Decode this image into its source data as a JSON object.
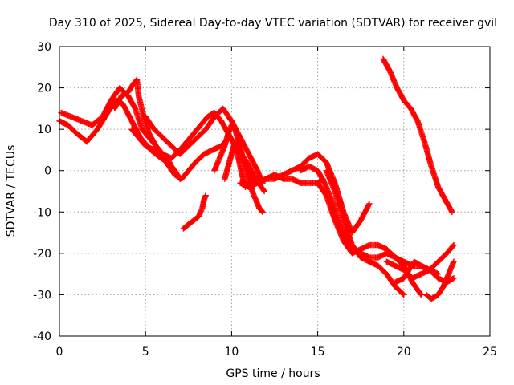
{
  "chart_data": {
    "type": "scatter",
    "title": "Day 310 of 2025, Sidereal Day-to-day VTEC variation (SDTVAR) for receiver gvil",
    "xlabel": "GPS time / hours",
    "ylabel": "SDTVAR / TECUs",
    "xlim": [
      0,
      25
    ],
    "ylim": [
      -40,
      30
    ],
    "xticks": [
      0,
      5,
      10,
      15,
      20,
      25
    ],
    "yticks": [
      -40,
      -30,
      -20,
      -10,
      0,
      10,
      20,
      30
    ],
    "xtick_labels": [
      "0",
      "5",
      "10",
      "15",
      "20",
      "25"
    ],
    "ytick_labels": [
      "-40",
      "-30",
      "-20",
      "-10",
      "0",
      "10",
      "20",
      "30"
    ],
    "grid": true,
    "marker": "plus",
    "color": "#ff0000",
    "series": [
      {
        "x": [
          0.0,
          0.5,
          1.0,
          1.6,
          2.2,
          2.8,
          3.3,
          3.7,
          4.2,
          4.7,
          5.3,
          5.9,
          6.4
        ],
        "y": [
          12,
          11,
          9,
          7,
          10,
          14,
          17,
          16,
          12,
          8,
          5,
          3,
          2
        ]
      },
      {
        "x": [
          0.1,
          0.7,
          1.3,
          1.9,
          2.5,
          3.0,
          3.5,
          4.0,
          4.4,
          4.8,
          5.4,
          6.0,
          6.7,
          7.0
        ],
        "y": [
          14,
          13,
          12,
          11,
          13,
          17,
          20,
          18,
          15,
          10,
          7,
          4,
          0,
          -2
        ]
      },
      {
        "x": [
          3.2,
          3.6,
          4.0,
          4.3,
          4.5,
          4.6,
          4.9,
          5.2,
          5.6,
          6.1,
          6.6,
          7.0
        ],
        "y": [
          15,
          18,
          19,
          21,
          22,
          18,
          13,
          9,
          6,
          3,
          0,
          -2
        ]
      },
      {
        "x": [
          4.2,
          4.6,
          5.0,
          5.5,
          6.0,
          6.5,
          7.0,
          7.4,
          7.8,
          8.2,
          8.6,
          9.0,
          9.4,
          9.8,
          10.2,
          10.6,
          11.0,
          11.3
        ],
        "y": [
          10,
          8,
          6,
          5,
          4,
          3,
          5,
          7,
          9,
          11,
          13,
          14,
          12,
          9,
          6,
          3,
          0,
          -3
        ]
      },
      {
        "x": [
          5.0,
          5.5,
          6.0,
          6.5,
          7.0,
          7.5,
          8.0,
          8.5,
          9.0,
          9.5,
          10.0,
          10.5,
          11.0,
          11.5,
          11.8
        ],
        "y": [
          13,
          10,
          8,
          6,
          4,
          6,
          8,
          10,
          13,
          15,
          12,
          8,
          4,
          0,
          -3
        ]
      },
      {
        "x": [
          5.8,
          6.2,
          6.7,
          7.1,
          7.5,
          7.9,
          8.4,
          8.9,
          9.4,
          9.9,
          10.4,
          10.9,
          11.4,
          11.9
        ],
        "y": [
          4,
          2,
          -1,
          -2,
          0,
          2,
          4,
          5,
          6,
          8,
          5,
          2,
          -2,
          -5
        ]
      },
      {
        "x": [
          7.2,
          7.5,
          7.8,
          8.1,
          8.3,
          8.4,
          8.5
        ],
        "y": [
          -14,
          -13,
          -12,
          -11,
          -9,
          -7,
          -6
        ]
      },
      {
        "x": [
          9.0,
          9.2,
          9.4,
          9.6,
          9.8,
          10.0,
          10.2,
          10.4,
          10.6,
          10.8,
          11.0,
          11.2,
          11.4,
          11.6,
          11.8
        ],
        "y": [
          0,
          2,
          4,
          6,
          9,
          11,
          10,
          7,
          4,
          1,
          -2,
          -5,
          -7,
          -9,
          -10
        ]
      },
      {
        "x": [
          9.6,
          9.8,
          10.0,
          10.2,
          10.4,
          10.6,
          10.8
        ],
        "y": [
          -2,
          1,
          4,
          7,
          3,
          -1,
          -4
        ]
      },
      {
        "x": [
          10.5,
          11.0,
          11.5,
          12.0,
          12.5,
          13.0,
          13.5,
          14.0,
          14.5,
          15.0,
          15.3
        ],
        "y": [
          -3,
          -4,
          -3,
          -2,
          -1,
          -2,
          -2,
          -3,
          -3,
          -3,
          -2
        ]
      },
      {
        "x": [
          11.5,
          12.0,
          12.5,
          13.0,
          13.5,
          14.0,
          14.5,
          15.0,
          15.5,
          16.0,
          16.5,
          17.0,
          17.5,
          18.0
        ],
        "y": [
          -3,
          -2,
          -2,
          -1,
          0,
          1,
          3,
          4,
          2,
          -3,
          -10,
          -15,
          -12,
          -8
        ]
      },
      {
        "x": [
          14.0,
          14.5,
          15.0,
          15.4,
          15.8,
          16.2,
          16.6,
          17.0,
          17.5,
          18.0,
          18.5,
          19.0,
          19.5,
          20.0,
          20.5,
          21.0,
          21.5,
          22.0
        ],
        "y": [
          0,
          1,
          0,
          -3,
          -7,
          -12,
          -16,
          -19,
          -20,
          -21,
          -21,
          -20,
          -21,
          -22,
          -23,
          -23,
          -24,
          -25
        ]
      },
      {
        "x": [
          15.0,
          15.5,
          16.0,
          16.5,
          17.0,
          17.5,
          18.0,
          18.5,
          19.0,
          19.5,
          20.0,
          20.5,
          21.0
        ],
        "y": [
          -3,
          -6,
          -12,
          -17,
          -20,
          -19,
          -18,
          -18,
          -19,
          -21,
          -23,
          -27,
          -30
        ]
      },
      {
        "x": [
          15.5,
          16.0,
          16.5,
          17.0,
          17.5,
          18.0,
          18.5,
          19.0,
          19.5,
          20.0
        ],
        "y": [
          0,
          -5,
          -12,
          -18,
          -21,
          -22,
          -23,
          -25,
          -28,
          -30
        ]
      },
      {
        "x": [
          19.0,
          19.5,
          20.0,
          20.5,
          21.0,
          21.5,
          22.0,
          22.5,
          22.9
        ],
        "y": [
          -22,
          -23,
          -24,
          -26,
          -25,
          -24,
          -22,
          -20,
          -18
        ]
      },
      {
        "x": [
          19.5,
          20.0,
          20.3,
          20.6,
          21.0,
          21.5,
          22.0,
          22.5,
          22.9
        ],
        "y": [
          -27,
          -26,
          -24,
          -22,
          -23,
          -24,
          -26,
          -27,
          -26
        ]
      },
      {
        "x": [
          21.3,
          21.6,
          22.0,
          22.3,
          22.6,
          22.9
        ],
        "y": [
          -30,
          -31,
          -30,
          -28,
          -25,
          -22
        ]
      },
      {
        "x": [
          18.8,
          19.2,
          19.6,
          20.0,
          20.4,
          20.8,
          21.2,
          21.6,
          22.0,
          22.4,
          22.8
        ],
        "y": [
          27,
          24,
          20,
          17,
          15,
          12,
          7,
          1,
          -4,
          -7,
          -10
        ]
      }
    ]
  }
}
